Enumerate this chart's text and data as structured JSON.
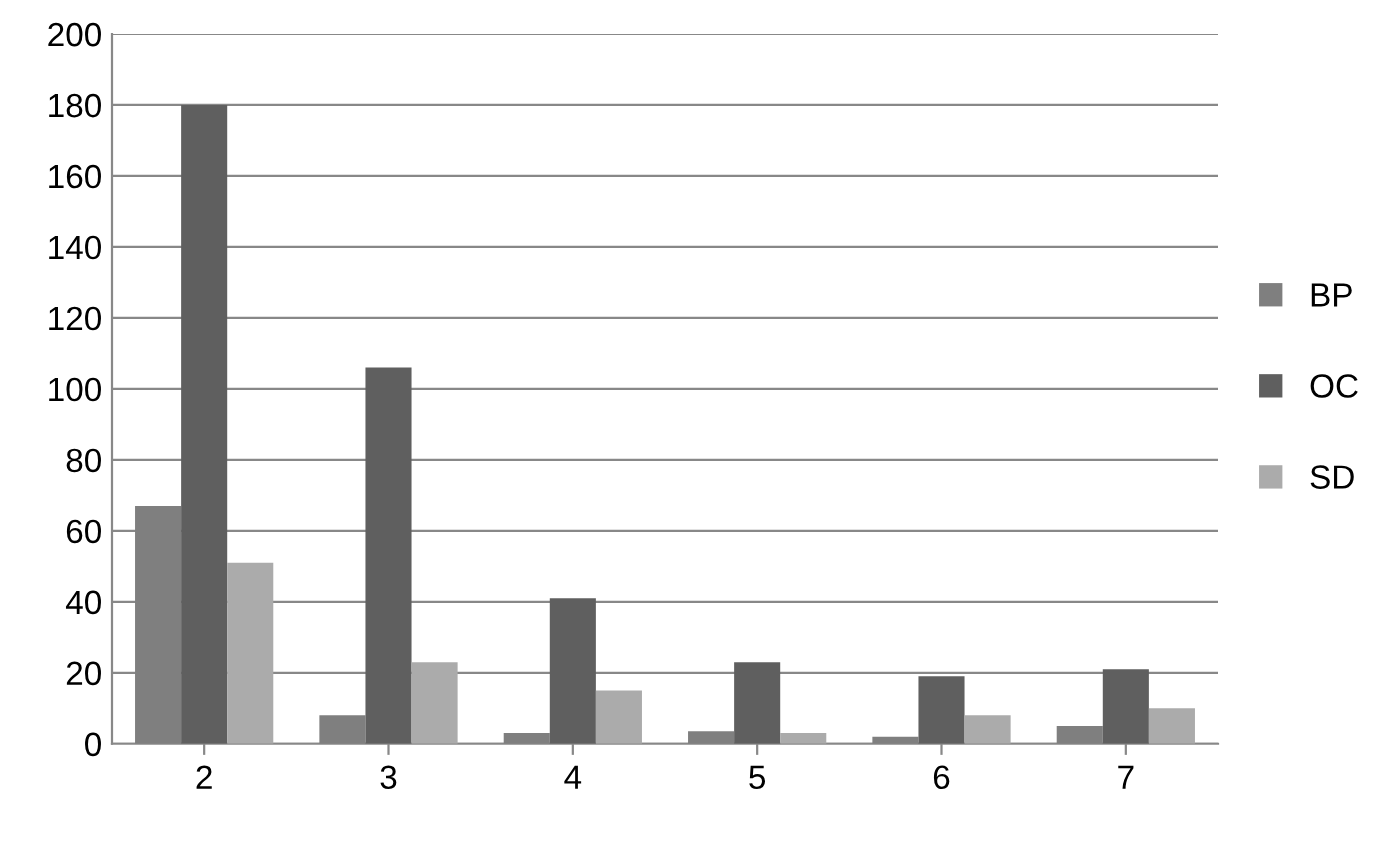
{
  "chart_data": {
    "type": "bar",
    "categories": [
      "2",
      "3",
      "4",
      "5",
      "6",
      "7"
    ],
    "series": [
      {
        "name": "BP",
        "color": "#7f7f7f",
        "values": [
          67,
          8,
          3,
          3.5,
          2,
          5
        ]
      },
      {
        "name": "OC",
        "color": "#5f5f5f",
        "values": [
          180,
          106,
          41,
          23,
          19,
          21
        ]
      },
      {
        "name": "SD",
        "color": "#ababab",
        "values": [
          51,
          23,
          15,
          3,
          8,
          10
        ]
      }
    ],
    "ylim": [
      0,
      200
    ],
    "yticks": [
      0,
      20,
      40,
      60,
      80,
      100,
      120,
      140,
      160,
      180,
      200
    ],
    "grid": "y",
    "legend": "right"
  }
}
